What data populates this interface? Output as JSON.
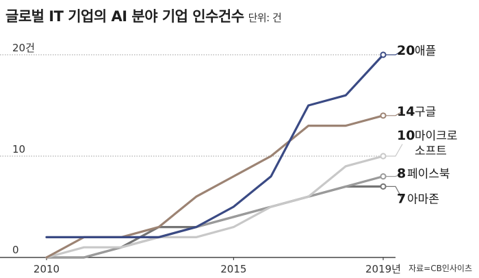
{
  "title": "글로벌 IT 기업의 AI 분야 기업 인수건수",
  "unit": "단위: 건",
  "source": "자료=CB인사이츠",
  "chart_data": {
    "type": "line",
    "x": [
      2010,
      2011,
      2012,
      2013,
      2014,
      2015,
      2016,
      2017,
      2018,
      2019
    ],
    "xticks": [
      "2010",
      "2015",
      "2019년"
    ],
    "yticks": [
      "0",
      "10",
      "20건"
    ],
    "ylim": [
      0,
      20
    ],
    "series": [
      {
        "name": "애플",
        "final": "20",
        "color": "#3a4a84",
        "values": [
          2,
          2,
          2,
          2,
          3,
          5,
          8,
          15,
          16,
          20
        ]
      },
      {
        "name": "구글",
        "final": "14",
        "color": "#9c8373",
        "values": [
          0,
          2,
          2,
          3,
          6,
          8,
          10,
          13,
          13,
          14
        ]
      },
      {
        "name": "마이크로 소프트",
        "name_lines": [
          "마이크로",
          "소프트"
        ],
        "final": "10",
        "color": "#c8c8c8",
        "values": [
          0,
          1,
          1,
          2,
          2,
          3,
          5,
          6,
          9,
          10
        ]
      },
      {
        "name": "페이스북",
        "final": "8",
        "color": "#9a9a9a",
        "values": [
          0,
          0,
          1,
          2,
          3,
          4,
          5,
          6,
          7,
          8
        ]
      },
      {
        "name": "아마존",
        "final": "7",
        "color": "#747474",
        "values": [
          0,
          0,
          1,
          3,
          3,
          4,
          5,
          6,
          7,
          7
        ]
      }
    ]
  }
}
